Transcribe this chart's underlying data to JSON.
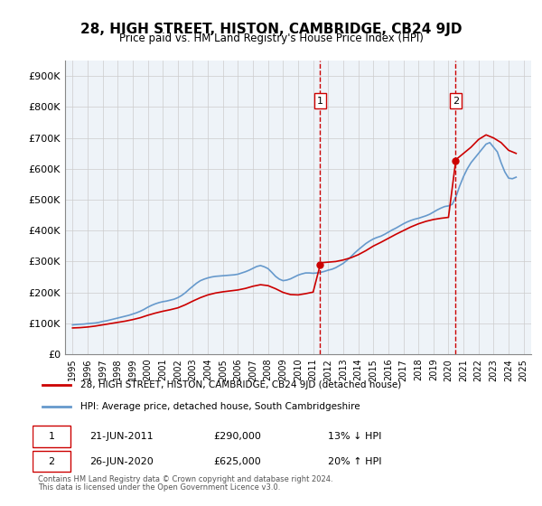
{
  "title": "28, HIGH STREET, HISTON, CAMBRIDGE, CB24 9JD",
  "subtitle": "Price paid vs. HM Land Registry's House Price Index (HPI)",
  "red_label": "28, HIGH STREET, HISTON, CAMBRIDGE, CB24 9JD (detached house)",
  "blue_label": "HPI: Average price, detached house, South Cambridgeshire",
  "footnote1": "Contains HM Land Registry data © Crown copyright and database right 2024.",
  "footnote2": "This data is licensed under the Open Government Licence v3.0.",
  "transaction1": {
    "label": "1",
    "date": "21-JUN-2011",
    "price": "£290,000",
    "hpi": "13% ↓ HPI",
    "year": 2011.47
  },
  "transaction2": {
    "label": "2",
    "date": "26-JUN-2020",
    "price": "£625,000",
    "hpi": "20% ↑ HPI",
    "year": 2020.48
  },
  "ylim": [
    0,
    950000
  ],
  "yticks": [
    0,
    100000,
    200000,
    300000,
    400000,
    500000,
    600000,
    700000,
    800000,
    900000
  ],
  "ytick_labels": [
    "£0",
    "£100K",
    "£200K",
    "£300K",
    "£400K",
    "£500K",
    "£600K",
    "£700K",
    "£800K",
    "£900K"
  ],
  "xlim": [
    1994.5,
    2025.5
  ],
  "xticks": [
    1995,
    1996,
    1997,
    1998,
    1999,
    2000,
    2001,
    2002,
    2003,
    2004,
    2005,
    2006,
    2007,
    2008,
    2009,
    2010,
    2011,
    2012,
    2013,
    2014,
    2015,
    2016,
    2017,
    2018,
    2019,
    2020,
    2021,
    2022,
    2023,
    2024,
    2025
  ],
  "red_color": "#cc0000",
  "blue_color": "#6699cc",
  "bg_color": "#eef3f8",
  "vline_color": "#cc0000",
  "grid_color": "#cccccc",
  "hpi_x": [
    1995,
    1995.25,
    1995.5,
    1995.75,
    1996,
    1996.25,
    1996.5,
    1996.75,
    1997,
    1997.25,
    1997.5,
    1997.75,
    1998,
    1998.25,
    1998.5,
    1998.75,
    1999,
    1999.25,
    1999.5,
    1999.75,
    2000,
    2000.25,
    2000.5,
    2000.75,
    2001,
    2001.25,
    2001.5,
    2001.75,
    2002,
    2002.25,
    2002.5,
    2002.75,
    2003,
    2003.25,
    2003.5,
    2003.75,
    2004,
    2004.25,
    2004.5,
    2004.75,
    2005,
    2005.25,
    2005.5,
    2005.75,
    2006,
    2006.25,
    2006.5,
    2006.75,
    2007,
    2007.25,
    2007.5,
    2007.75,
    2008,
    2008.25,
    2008.5,
    2008.75,
    2009,
    2009.25,
    2009.5,
    2009.75,
    2010,
    2010.25,
    2010.5,
    2010.75,
    2011,
    2011.25,
    2011.5,
    2011.75,
    2012,
    2012.25,
    2012.5,
    2012.75,
    2013,
    2013.25,
    2013.5,
    2013.75,
    2014,
    2014.25,
    2014.5,
    2014.75,
    2015,
    2015.25,
    2015.5,
    2015.75,
    2016,
    2016.25,
    2016.5,
    2016.75,
    2017,
    2017.25,
    2017.5,
    2017.75,
    2018,
    2018.25,
    2018.5,
    2018.75,
    2019,
    2019.25,
    2019.5,
    2019.75,
    2020,
    2020.25,
    2020.5,
    2020.75,
    2021,
    2021.25,
    2021.5,
    2021.75,
    2022,
    2022.25,
    2022.5,
    2022.75,
    2023,
    2023.25,
    2023.5,
    2023.75,
    2024,
    2024.25,
    2024.5
  ],
  "hpi_y": [
    95000,
    96000,
    97000,
    97500,
    99000,
    100000,
    101000,
    103000,
    106000,
    108000,
    111000,
    114000,
    117000,
    120000,
    123000,
    126000,
    130000,
    134000,
    139000,
    145000,
    152000,
    158000,
    163000,
    167000,
    170000,
    172000,
    175000,
    178000,
    183000,
    190000,
    199000,
    210000,
    220000,
    230000,
    238000,
    243000,
    247000,
    250000,
    252000,
    253000,
    254000,
    255000,
    256000,
    257000,
    259000,
    263000,
    267000,
    272000,
    278000,
    284000,
    287000,
    283000,
    277000,
    265000,
    252000,
    243000,
    238000,
    240000,
    244000,
    250000,
    256000,
    260000,
    263000,
    263000,
    262000,
    263000,
    265000,
    268000,
    272000,
    275000,
    280000,
    287000,
    294000,
    304000,
    315000,
    327000,
    338000,
    348000,
    358000,
    366000,
    373000,
    378000,
    382000,
    388000,
    395000,
    402000,
    408000,
    415000,
    422000,
    428000,
    433000,
    437000,
    440000,
    444000,
    448000,
    453000,
    460000,
    467000,
    473000,
    478000,
    480000,
    485000,
    510000,
    545000,
    575000,
    600000,
    620000,
    635000,
    650000,
    665000,
    680000,
    685000,
    670000,
    655000,
    620000,
    590000,
    570000,
    568000,
    573000
  ],
  "red_x": [
    1995.0,
    1995.5,
    1996.0,
    1996.5,
    1997.0,
    1997.5,
    1998.0,
    1998.5,
    1999.0,
    1999.5,
    2000.0,
    2000.5,
    2001.0,
    2001.5,
    2002.0,
    2002.5,
    2003.0,
    2003.5,
    2004.0,
    2004.5,
    2005.0,
    2005.5,
    2006.0,
    2006.5,
    2007.0,
    2007.5,
    2008.0,
    2008.5,
    2009.0,
    2009.5,
    2010.0,
    2010.5,
    2011.0,
    2011.47,
    2011.5,
    2012.0,
    2012.5,
    2013.0,
    2013.5,
    2014.0,
    2014.5,
    2015.0,
    2015.5,
    2016.0,
    2016.5,
    2017.0,
    2017.5,
    2018.0,
    2018.5,
    2019.0,
    2019.5,
    2020.0,
    2020.48,
    2020.5,
    2021.0,
    2021.5,
    2022.0,
    2022.5,
    2023.0,
    2023.5,
    2024.0,
    2024.5
  ],
  "red_y": [
    85000,
    86000,
    88000,
    91000,
    95000,
    99000,
    103000,
    107000,
    112000,
    118000,
    126000,
    133000,
    139000,
    144000,
    150000,
    160000,
    172000,
    183000,
    192000,
    198000,
    202000,
    205000,
    208000,
    213000,
    220000,
    225000,
    222000,
    212000,
    200000,
    193000,
    192000,
    196000,
    201000,
    290000,
    296000,
    298000,
    300000,
    305000,
    312000,
    322000,
    335000,
    350000,
    362000,
    375000,
    388000,
    400000,
    412000,
    422000,
    430000,
    436000,
    440000,
    443000,
    625000,
    630000,
    650000,
    670000,
    695000,
    710000,
    700000,
    685000,
    660000,
    650000
  ]
}
